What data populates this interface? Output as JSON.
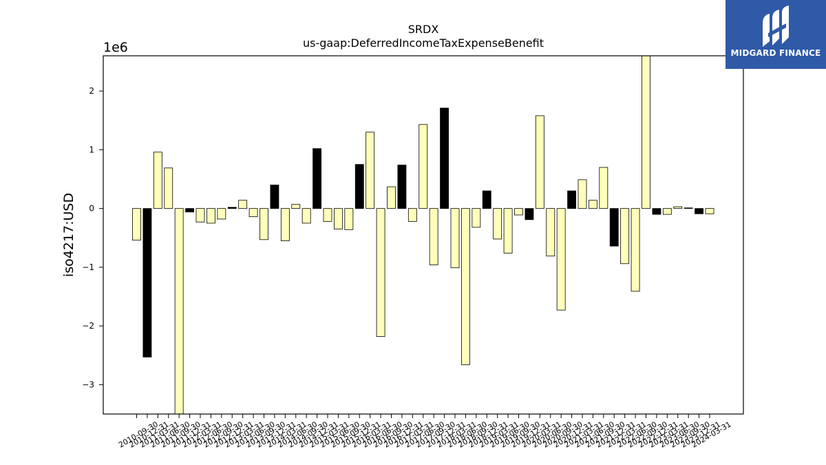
{
  "chart_data": {
    "type": "bar",
    "title": "SRDX",
    "subtitle": "us-gaap:DeferredIncomeTaxExpenseBenefit",
    "xlabel": "",
    "ylabel": "iso4217:USD",
    "y_multiplier_label": "1e6",
    "ylim": [
      -3.5,
      2.6
    ],
    "yticks": [
      -3,
      -2,
      -1,
      0,
      1,
      2
    ],
    "ytick_labels": [
      "−3",
      "−2",
      "−1",
      "0",
      "1",
      "2"
    ],
    "grid": false,
    "categories": [
      "2010-09-30",
      "2010-12-31",
      "2011-03-31",
      "2011-06-30",
      "2011-09-30",
      "2011-12-31",
      "2012-03-31",
      "2012-06-30",
      "2012-09-30",
      "2012-12-31",
      "2013-03-31",
      "2013-06-30",
      "2013-09-30",
      "2013-12-31",
      "2014-03-31",
      "2014-06-30",
      "2014-09-30",
      "2014-12-31",
      "2015-03-31",
      "2015-06-30",
      "2015-09-30",
      "2015-12-31",
      "2016-03-31",
      "2016-06-30",
      "2016-09-30",
      "2016-12-31",
      "2017-03-31",
      "2017-06-30",
      "2017-09-30",
      "2017-12-31",
      "2018-03-31",
      "2018-06-30",
      "2018-09-30",
      "2018-12-31",
      "2019-03-31",
      "2019-06-30",
      "2019-09-30",
      "2019-12-31",
      "2020-03-31",
      "2020-06-30",
      "2020-09-30",
      "2020-12-31",
      "2021-03-31",
      "2021-06-30",
      "2021-09-30",
      "2021-12-31",
      "2022-03-31",
      "2022-06-30",
      "2022-09-30",
      "2022-12-31",
      "2023-03-31",
      "2023-06-30",
      "2023-09-30",
      "2023-12-31",
      "2024-03-31"
    ],
    "values": [
      -0.54,
      -2.53,
      0.96,
      0.69,
      -3.55,
      -0.06,
      -0.23,
      -0.25,
      -0.18,
      0.02,
      0.14,
      -0.14,
      -0.53,
      0.4,
      -0.55,
      0.07,
      -0.25,
      1.02,
      -0.22,
      -0.35,
      -0.36,
      0.75,
      1.3,
      -2.18,
      0.37,
      0.74,
      -0.22,
      1.43,
      -0.96,
      1.71,
      -1.01,
      -2.66,
      -0.32,
      0.3,
      -0.52,
      -0.76,
      -0.11,
      -0.19,
      1.58,
      -0.81,
      -1.73,
      0.3,
      0.49,
      0.14,
      0.7,
      -0.64,
      -0.94,
      -1.41,
      2.7,
      -0.1,
      -0.1,
      0.03,
      0.01,
      -0.09,
      -0.09
    ],
    "bar_colors": [
      "#ffffbb",
      "#000000",
      "#ffffbb",
      "#ffffbb",
      "#ffffbb",
      "#000000",
      "#ffffbb",
      "#ffffbb",
      "#ffffbb",
      "#000000",
      "#ffffbb",
      "#ffffbb",
      "#ffffbb",
      "#000000",
      "#ffffbb",
      "#ffffbb",
      "#ffffbb",
      "#000000",
      "#ffffbb",
      "#ffffbb",
      "#ffffbb",
      "#000000",
      "#ffffbb",
      "#ffffbb",
      "#ffffbb",
      "#000000",
      "#ffffbb",
      "#ffffbb",
      "#ffffbb",
      "#000000",
      "#ffffbb",
      "#ffffbb",
      "#ffffbb",
      "#000000",
      "#ffffbb",
      "#ffffbb",
      "#ffffbb",
      "#000000",
      "#ffffbb",
      "#ffffbb",
      "#ffffbb",
      "#000000",
      "#ffffbb",
      "#ffffbb",
      "#ffffbb",
      "#000000",
      "#ffffbb",
      "#ffffbb",
      "#ffffbb",
      "#000000",
      "#ffffbb",
      "#ffffbb",
      "#ffffbb",
      "#000000",
      "#ffffbb"
    ]
  },
  "logo": {
    "text": "MIDGARD FINANCE",
    "background": "#2f5aa8",
    "icon": "midgard-mark-icon"
  }
}
